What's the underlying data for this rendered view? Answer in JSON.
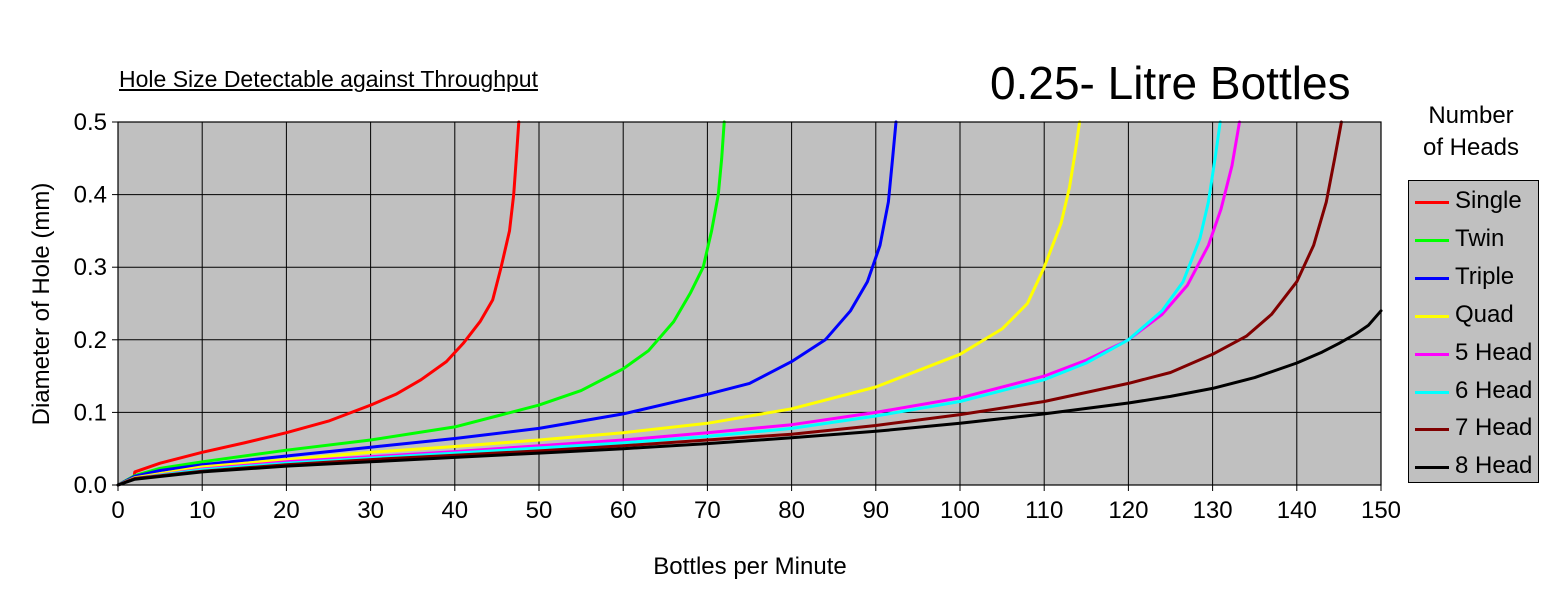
{
  "chart_data": {
    "type": "line",
    "subtitle": "Hole Size Detectable against Throughput",
    "title": "0.25- Litre Bottles",
    "xlabel": "Bottles per Minute",
    "ylabel": "Diameter of Hole (mm)",
    "xlim": [
      0,
      150
    ],
    "ylim": [
      0,
      0.5
    ],
    "xticks": [
      "0",
      "10",
      "20",
      "30",
      "40",
      "50",
      "60",
      "70",
      "80",
      "90",
      "100",
      "110",
      "120",
      "130",
      "140",
      "150"
    ],
    "yticks": [
      "0.0",
      "0.1",
      "0.2",
      "0.3",
      "0.4",
      "0.5"
    ],
    "grid": true,
    "legend_title": [
      "Number",
      "of Heads"
    ],
    "legend_position": "right",
    "series": [
      {
        "name": "Single",
        "color": "#ff0000",
        "x": [
          0,
          1.9,
          2,
          5,
          10,
          15,
          20,
          25,
          30,
          33,
          36,
          39,
          41,
          43,
          44.5,
          45.5,
          46.5,
          47,
          47.3,
          47.6
        ],
        "y": [
          0,
          0.01,
          0.018,
          0.03,
          0.045,
          0.058,
          0.072,
          0.088,
          0.11,
          0.125,
          0.145,
          0.17,
          0.195,
          0.225,
          0.255,
          0.3,
          0.35,
          0.4,
          0.45,
          0.5
        ]
      },
      {
        "name": "Twin",
        "color": "#00ff00",
        "x": [
          0,
          2,
          5,
          10,
          20,
          30,
          40,
          45,
          50,
          55,
          60,
          63,
          66,
          68,
          69.5,
          70.5,
          71.3,
          71.7,
          72
        ],
        "y": [
          0,
          0.013,
          0.023,
          0.032,
          0.048,
          0.062,
          0.08,
          0.095,
          0.11,
          0.13,
          0.16,
          0.185,
          0.225,
          0.265,
          0.3,
          0.35,
          0.4,
          0.45,
          0.5
        ]
      },
      {
        "name": "Triple",
        "color": "#0000ff",
        "x": [
          0,
          2,
          5,
          10,
          20,
          30,
          40,
          50,
          60,
          70,
          75,
          80,
          84,
          87,
          89,
          90.5,
          91.5,
          92,
          92.4
        ],
        "y": [
          0,
          0.012,
          0.02,
          0.028,
          0.04,
          0.052,
          0.064,
          0.078,
          0.098,
          0.125,
          0.14,
          0.17,
          0.2,
          0.24,
          0.28,
          0.33,
          0.39,
          0.45,
          0.5
        ]
      },
      {
        "name": "Quad",
        "color": "#ffff00",
        "x": [
          0,
          2,
          10,
          20,
          30,
          40,
          50,
          60,
          70,
          80,
          90,
          100,
          105,
          108,
          110,
          112,
          113,
          113.7,
          114.2
        ],
        "y": [
          0,
          0.01,
          0.025,
          0.035,
          0.045,
          0.053,
          0.062,
          0.072,
          0.085,
          0.105,
          0.135,
          0.18,
          0.215,
          0.25,
          0.3,
          0.36,
          0.41,
          0.46,
          0.5
        ]
      },
      {
        "name": "5 Head",
        "color": "#ff00ff",
        "x": [
          0,
          2,
          10,
          20,
          30,
          40,
          50,
          60,
          70,
          80,
          90,
          100,
          110,
          115,
          120,
          124,
          127,
          129.5,
          131,
          132.3,
          133.2
        ],
        "y": [
          0,
          0.009,
          0.022,
          0.032,
          0.039,
          0.046,
          0.054,
          0.062,
          0.072,
          0.083,
          0.1,
          0.12,
          0.15,
          0.172,
          0.2,
          0.235,
          0.275,
          0.33,
          0.38,
          0.44,
          0.5
        ]
      },
      {
        "name": "6 Head",
        "color": "#00ffff",
        "x": [
          0,
          2,
          10,
          20,
          30,
          40,
          50,
          60,
          70,
          80,
          90,
          100,
          110,
          115,
          120,
          124,
          126.5,
          128.5,
          129.5,
          130.3,
          130.9
        ],
        "y": [
          0,
          0.009,
          0.021,
          0.03,
          0.037,
          0.044,
          0.051,
          0.058,
          0.067,
          0.078,
          0.095,
          0.115,
          0.145,
          0.168,
          0.2,
          0.24,
          0.28,
          0.34,
          0.39,
          0.45,
          0.5
        ]
      },
      {
        "name": "7 Head",
        "color": "#800000",
        "x": [
          0,
          2,
          10,
          20,
          30,
          40,
          50,
          60,
          70,
          80,
          90,
          100,
          110,
          120,
          125,
          130,
          134,
          137,
          140,
          142,
          143.5,
          144.5,
          145.3
        ],
        "y": [
          0,
          0.009,
          0.019,
          0.028,
          0.035,
          0.041,
          0.047,
          0.054,
          0.062,
          0.07,
          0.082,
          0.097,
          0.115,
          0.14,
          0.155,
          0.18,
          0.205,
          0.235,
          0.28,
          0.33,
          0.39,
          0.45,
          0.5
        ]
      },
      {
        "name": "8 Head",
        "color": "#000000",
        "x": [
          0,
          2,
          10,
          20,
          30,
          40,
          50,
          60,
          70,
          80,
          90,
          100,
          110,
          120,
          125,
          130,
          135,
          140,
          143,
          145,
          147,
          148.5,
          150
        ],
        "y": [
          0,
          0.008,
          0.018,
          0.026,
          0.032,
          0.038,
          0.044,
          0.05,
          0.057,
          0.065,
          0.074,
          0.085,
          0.098,
          0.113,
          0.122,
          0.133,
          0.148,
          0.168,
          0.183,
          0.195,
          0.208,
          0.22,
          0.24
        ]
      }
    ]
  }
}
